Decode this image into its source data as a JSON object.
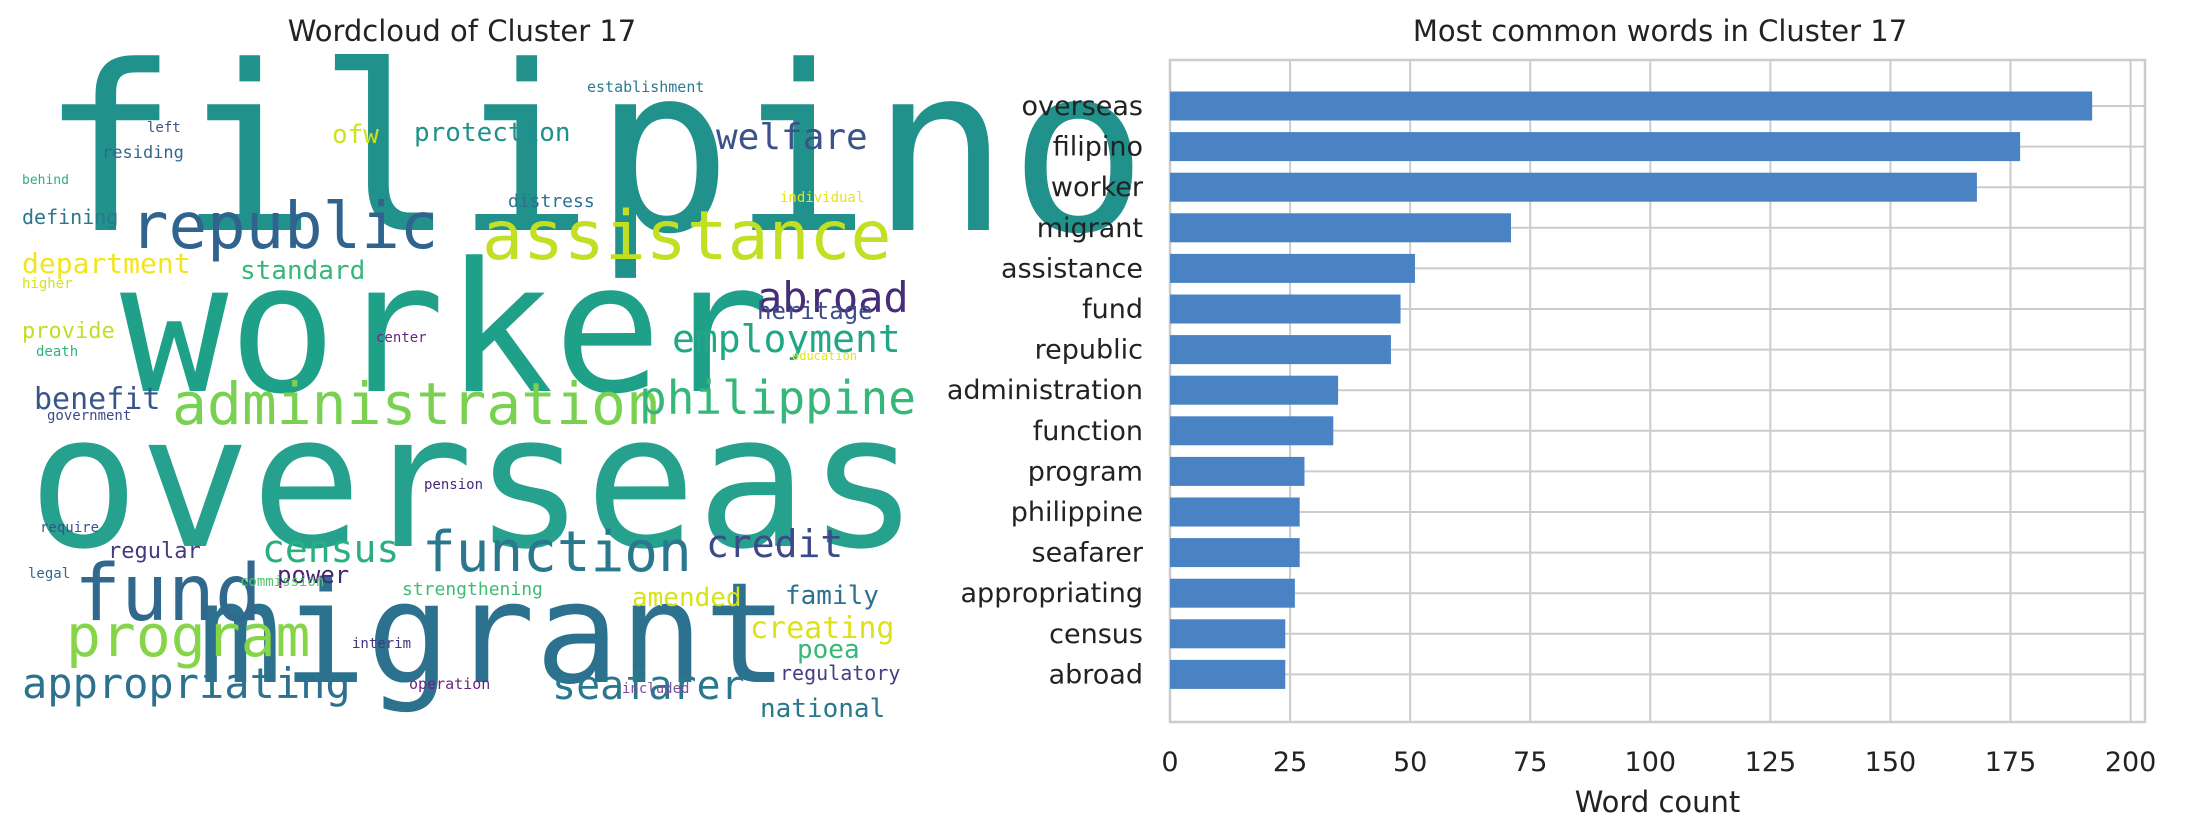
{
  "wordcloud": {
    "title": "Wordcloud of Cluster 17",
    "words": [
      {
        "text": "filipino",
        "color": "#21918c"
      },
      {
        "text": "worker",
        "color": "#1fa088"
      },
      {
        "text": "overseas",
        "color": "#25a18e"
      },
      {
        "text": "migrant",
        "color": "#2c728e"
      },
      {
        "text": "republic",
        "color": "#30638e"
      },
      {
        "text": "assistance",
        "color": "#c2df23"
      },
      {
        "text": "administration",
        "color": "#7ad151"
      },
      {
        "text": "fund",
        "color": "#31688e"
      },
      {
        "text": "function",
        "color": "#2a788e"
      },
      {
        "text": "program",
        "color": "#86d549"
      },
      {
        "text": "appropriating",
        "color": "#2c728e"
      },
      {
        "text": "seafarer",
        "color": "#2a788e"
      },
      {
        "text": "philippine",
        "color": "#35b779"
      },
      {
        "text": "employment",
        "color": "#22a785"
      },
      {
        "text": "abroad",
        "color": "#472c7a"
      },
      {
        "text": "welfare",
        "color": "#3b528b"
      },
      {
        "text": "credit",
        "color": "#3e4989"
      },
      {
        "text": "census",
        "color": "#2ab07f"
      },
      {
        "text": "department",
        "color": "#f1e51d"
      },
      {
        "text": "standard",
        "color": "#35b779"
      },
      {
        "text": "benefit",
        "color": "#39568c"
      },
      {
        "text": "protection",
        "color": "#21918c"
      },
      {
        "text": "ofw",
        "color": "#d0e11c"
      },
      {
        "text": "heritage",
        "color": "#3e4c8a"
      },
      {
        "text": "family",
        "color": "#2c728e"
      },
      {
        "text": "creating",
        "color": "#dde318"
      },
      {
        "text": "poea",
        "color": "#37b878"
      },
      {
        "text": "regulatory",
        "color": "#433e85"
      },
      {
        "text": "national",
        "color": "#2a788e"
      },
      {
        "text": "amended",
        "color": "#d8e219"
      },
      {
        "text": "power",
        "color": "#482576"
      },
      {
        "text": "regular",
        "color": "#443a83"
      },
      {
        "text": "provide",
        "color": "#c0df25"
      },
      {
        "text": "defining",
        "color": "#2a788e"
      },
      {
        "text": "distress",
        "color": "#2c728e"
      },
      {
        "text": "strengthening",
        "color": "#3dbc74"
      },
      {
        "text": "residing",
        "color": "#31688e"
      },
      {
        "text": "establishment",
        "color": "#287c8e"
      },
      {
        "text": "individual",
        "color": "#e5e419"
      },
      {
        "text": "left",
        "color": "#3b528b"
      },
      {
        "text": "behind",
        "color": "#29af7f"
      },
      {
        "text": "higher",
        "color": "#d2e21b"
      },
      {
        "text": "death",
        "color": "#2db27d"
      },
      {
        "text": "government",
        "color": "#3e4989"
      },
      {
        "text": "center",
        "color": "#6a2383"
      },
      {
        "text": "education",
        "color": "#e5e419"
      },
      {
        "text": "pension",
        "color": "#482878"
      },
      {
        "text": "require",
        "color": "#3b528b"
      },
      {
        "text": "legal",
        "color": "#31688e"
      },
      {
        "text": "commission",
        "color": "#52c569"
      },
      {
        "text": "interim",
        "color": "#46337e"
      },
      {
        "text": "operation",
        "color": "#6a2383"
      },
      {
        "text": "included",
        "color": "#7e4e9e"
      }
    ]
  },
  "chart_data": {
    "type": "bar",
    "orientation": "horizontal",
    "title": "Most common words in Cluster 17",
    "xlabel": "Word count",
    "ylabel": "",
    "categories": [
      "overseas",
      "filipino",
      "worker",
      "migrant",
      "assistance",
      "fund",
      "republic",
      "administration",
      "function",
      "program",
      "philippine",
      "seafarer",
      "appropriating",
      "census",
      "abroad"
    ],
    "values": [
      192,
      177,
      168,
      71,
      51,
      48,
      46,
      35,
      34,
      28,
      27,
      27,
      26,
      24,
      24
    ],
    "xlim": [
      0,
      203
    ],
    "xticks": [
      0,
      25,
      50,
      75,
      100,
      125,
      150,
      175,
      200
    ],
    "grid": true,
    "bar_color": "#4a83c4",
    "grid_color": "#cccccc"
  }
}
